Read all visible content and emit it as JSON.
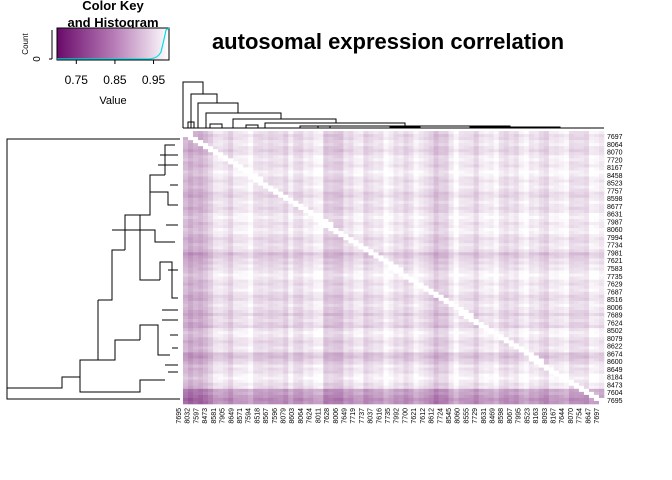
{
  "chart_data": {
    "type": "heatmap",
    "title": "autosomal expression correlation",
    "color_key": {
      "title_line1": "Color Key",
      "title_line2": "and Histogram",
      "xlabel": "Value",
      "ylabel": "Count",
      "y_tick": "0",
      "range": [
        0.7,
        0.99
      ],
      "ticks": [
        {
          "value": 0.75,
          "label": "0.75"
        },
        {
          "value": 0.85,
          "label": "0.85"
        },
        {
          "value": 0.95,
          "label": "0.95"
        }
      ],
      "colors": {
        "low": "#6a0a6a",
        "high": "#ffffff",
        "histogram": "#00ffff"
      }
    },
    "row_labels": [
      "7697",
      "8064",
      "8070",
      "7720",
      "8167",
      "8458",
      "8523",
      "7757",
      "8598",
      "8677",
      "8631",
      "7987",
      "8060",
      "7994",
      "7734",
      "7981",
      "7621",
      "7583",
      "7735",
      "7629",
      "7687",
      "8516",
      "8006",
      "7689",
      "7624",
      "8502",
      "8079",
      "8622",
      "8674",
      "8600",
      "8649",
      "8184",
      "8473",
      "7604",
      "7695"
    ],
    "col_labels": [
      "7695",
      "8032",
      "7597",
      "8473",
      "8581",
      "7905",
      "8649",
      "8571",
      "7594",
      "8518",
      "8567",
      "7596",
      "8079",
      "8603",
      "8064",
      "7624",
      "8011",
      "7628",
      "8006",
      "7649",
      "7719",
      "7737",
      "8037",
      "7616",
      "7735",
      "7992",
      "7700",
      "7621",
      "7612",
      "8612",
      "7724",
      "8545",
      "8060",
      "8555",
      "7729",
      "8631",
      "8469",
      "8598",
      "8067",
      "7995",
      "8523",
      "8163",
      "8093",
      "8167",
      "7644",
      "8070",
      "7754",
      "8647",
      "7697"
    ]
  }
}
